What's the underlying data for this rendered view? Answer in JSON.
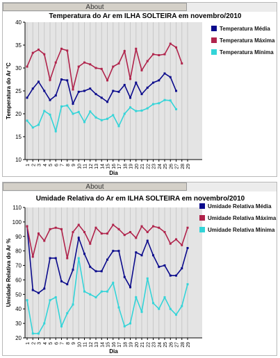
{
  "tabs": [
    {
      "label": "About"
    },
    {
      "label": "About"
    }
  ],
  "colors": {
    "media": "#0b0b8c",
    "maxima": "#b0234b",
    "minima": "#33d4d8",
    "grid": "#c8c8c8",
    "plot_bg": "#e4e4e4"
  },
  "chart_data": [
    {
      "type": "line",
      "title": "Temperatura do Ar em ILHA SOLTEIRA em novembro/2010",
      "xlabel": "Dia",
      "ylabel": "Temperatura do Ar °C",
      "ylim": [
        10,
        40
      ],
      "yticks": [
        10,
        15,
        20,
        25,
        30,
        35,
        40
      ],
      "x": [
        1,
        2,
        3,
        4,
        5,
        6,
        7,
        8,
        9,
        10,
        11,
        12,
        13,
        14,
        15,
        16,
        17,
        18,
        19,
        20,
        21,
        22,
        23,
        24,
        25,
        26,
        27,
        28,
        29
      ],
      "grid": "vertical",
      "legend_position": "right",
      "series": [
        {
          "name": "Temperatura Média",
          "key": "media",
          "values": [
            23.5,
            25.5,
            27.0,
            25.0,
            23.0,
            24.0,
            27.5,
            27.3,
            22.2,
            24.8,
            25.0,
            25.5,
            24.3,
            23.5,
            22.6,
            25.0,
            24.8,
            26.3,
            23.5,
            26.8,
            24.3,
            25.7,
            26.8,
            27.3,
            28.8,
            28.0,
            25.0,
            null,
            null
          ]
        },
        {
          "name": "Temperatura Máxima",
          "key": "maxima",
          "values": [
            30.3,
            33.3,
            34.0,
            33.0,
            27.4,
            31.2,
            34.2,
            33.8,
            25.3,
            30.3,
            31.2,
            30.8,
            30.0,
            29.8,
            27.3,
            30.3,
            31.0,
            33.7,
            27.6,
            34.2,
            29.5,
            31.5,
            33.0,
            32.8,
            33.0,
            35.3,
            34.5,
            31.0,
            null
          ]
        },
        {
          "name": "Temperatura Mínima",
          "key": "minima",
          "values": [
            18.5,
            17.0,
            17.6,
            20.6,
            19.8,
            16.2,
            21.6,
            21.8,
            20.0,
            20.4,
            18.2,
            20.5,
            19.2,
            18.6,
            18.9,
            19.7,
            17.3,
            20.0,
            21.4,
            20.6,
            20.7,
            21.2,
            22.1,
            22.3,
            23.0,
            22.9,
            21.0,
            null,
            null
          ]
        }
      ]
    },
    {
      "type": "line",
      "title": "Umidade Relativa do Ar em ILHA SOLTEIRA em novembro/2010",
      "xlabel": "Dia",
      "ylabel": "Umidade Relativa do Ar %",
      "ylim": [
        20,
        110
      ],
      "yticks": [
        20,
        30,
        40,
        50,
        60,
        70,
        80,
        90,
        100,
        110
      ],
      "x": [
        1,
        2,
        3,
        4,
        5,
        6,
        7,
        8,
        9,
        10,
        11,
        12,
        13,
        14,
        15,
        16,
        17,
        18,
        19,
        20,
        21,
        22,
        23,
        24,
        25,
        26,
        27,
        28,
        29
      ],
      "grid": "vertical",
      "legend_position": "right",
      "series": [
        {
          "name": "Umidade Relativa Média",
          "key": "media",
          "values": [
            97,
            53,
            51,
            54,
            75,
            75,
            59,
            57,
            67,
            89,
            78,
            69,
            66,
            66,
            74,
            80,
            80,
            62,
            55,
            79,
            77,
            87,
            77,
            69,
            70,
            63,
            63,
            68,
            82
          ]
        },
        {
          "name": "Umidade Relativa Máxima",
          "key": "maxima",
          "values": [
            97,
            76,
            92,
            87,
            95,
            96,
            95,
            75,
            93,
            98,
            93,
            85,
            96,
            92,
            92,
            98,
            95,
            91,
            93,
            89,
            97,
            93,
            97,
            96,
            93,
            85,
            88,
            84,
            96
          ]
        },
        {
          "name": "Umidade Relativa Mínima",
          "key": "minima",
          "values": [
            46,
            23,
            23,
            30,
            46,
            48,
            28,
            37,
            43,
            75,
            52,
            50,
            48,
            52,
            52,
            58,
            41,
            28,
            30,
            48,
            38,
            61,
            44,
            40,
            48,
            40,
            36,
            42,
            57
          ]
        }
      ]
    }
  ]
}
